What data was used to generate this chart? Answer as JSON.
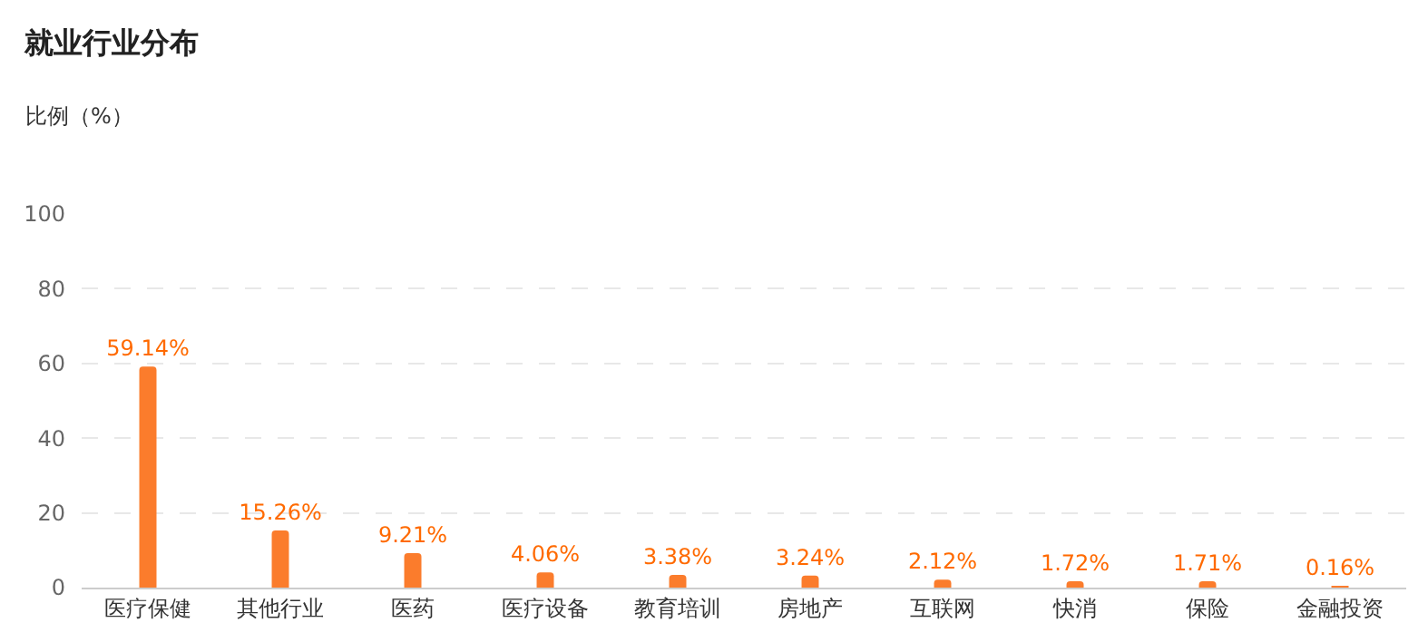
{
  "chart_data": {
    "type": "bar",
    "title": "就业行业分布",
    "ylabel": "比例（%）",
    "categories": [
      "医疗保健",
      "其他行业",
      "医药",
      "医疗设备",
      "教育培训",
      "房地产",
      "互联网",
      "快消",
      "保险",
      "金融投资"
    ],
    "values": [
      59.14,
      15.26,
      9.21,
      4.06,
      3.38,
      3.24,
      2.12,
      1.72,
      1.71,
      0.16
    ],
    "value_labels": [
      "59.14%",
      "15.26%",
      "9.21%",
      "4.06%",
      "3.38%",
      "3.24%",
      "2.12%",
      "1.72%",
      "1.71%",
      "0.16%"
    ],
    "color": "#fb7c2c",
    "ylim": [
      0,
      100
    ],
    "yticks": [
      0,
      20,
      40,
      60,
      80,
      100
    ],
    "grid": "y",
    "legend": false
  }
}
